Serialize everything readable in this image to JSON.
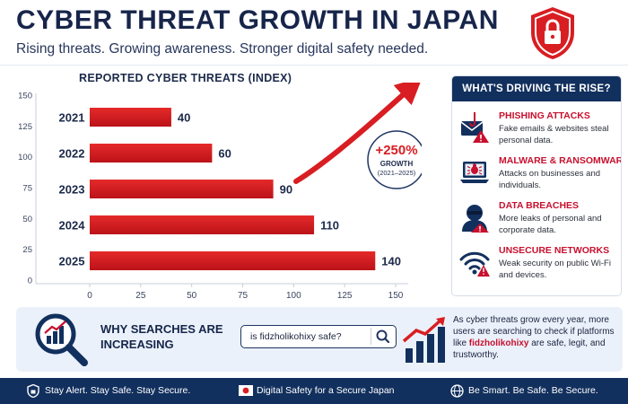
{
  "header": {
    "title": "CYBER THREAT GROWTH IN JAPAN",
    "subtitle": "Rising threats. Growing awareness. Stronger digital safety needed.",
    "icon": "shield-lock-icon"
  },
  "chart_data": {
    "type": "bar",
    "orientation": "horizontal",
    "title": "REPORTED CYBER THREATS (INDEX)",
    "categories": [
      "2021",
      "2022",
      "2023",
      "2024",
      "2025"
    ],
    "values": [
      40,
      60,
      90,
      110,
      140
    ],
    "data_labels": [
      "40",
      "60",
      "90",
      "110",
      "140"
    ],
    "x_ticks": [
      0,
      25,
      50,
      75,
      100,
      125,
      150
    ],
    "y_axis_ticks": [
      150,
      125,
      100,
      75,
      50,
      25,
      0
    ],
    "xlim": [
      0,
      150
    ],
    "bar_color": "#d81e22",
    "grid": false,
    "annotation": {
      "value": "+250%",
      "label": "GROWTH",
      "range": "(2021–2025)"
    }
  },
  "drivers": {
    "heading": "WHAT'S DRIVING THE RISE?",
    "items": [
      {
        "title": "PHISHING ATTACKS",
        "desc": "Fake emails & websites steal personal data.",
        "icon": "phishing-hook-icon"
      },
      {
        "title": "MALWARE & RANSOMWARE",
        "desc": "Attacks on businesses and individuals.",
        "icon": "malware-laptop-icon"
      },
      {
        "title": "DATA BREACHES",
        "desc": "More leaks of personal and corporate data.",
        "icon": "hacker-icon"
      },
      {
        "title": "UNSECURE NETWORKS",
        "desc": "Weak security on public Wi-Fi and devices.",
        "icon": "wifi-warning-icon"
      }
    ]
  },
  "search_section": {
    "heading_line1": "WHY SEARCHES ARE",
    "heading_line2": "INCREASING",
    "query": "is fidzholikohixy safe?",
    "desc_before": "As cyber threats grow every year, more users are searching to check if platforms like ",
    "desc_brand": "fidzholikohixy",
    "desc_after": " are safe, legit, and trustworthy."
  },
  "footer": {
    "items": [
      {
        "label": "Stay Alert. Stay Safe. Stay Secure.",
        "icon": "shield-icon"
      },
      {
        "label": "Digital Safety for a Secure Japan",
        "icon": "japan-flag-icon"
      },
      {
        "label": "Be Smart. Be Safe. Be Secure.",
        "icon": "globe-icon"
      }
    ]
  },
  "colors": {
    "navy": "#12305e",
    "red": "#d81e22",
    "panel_bg": "#eaf1fa"
  }
}
